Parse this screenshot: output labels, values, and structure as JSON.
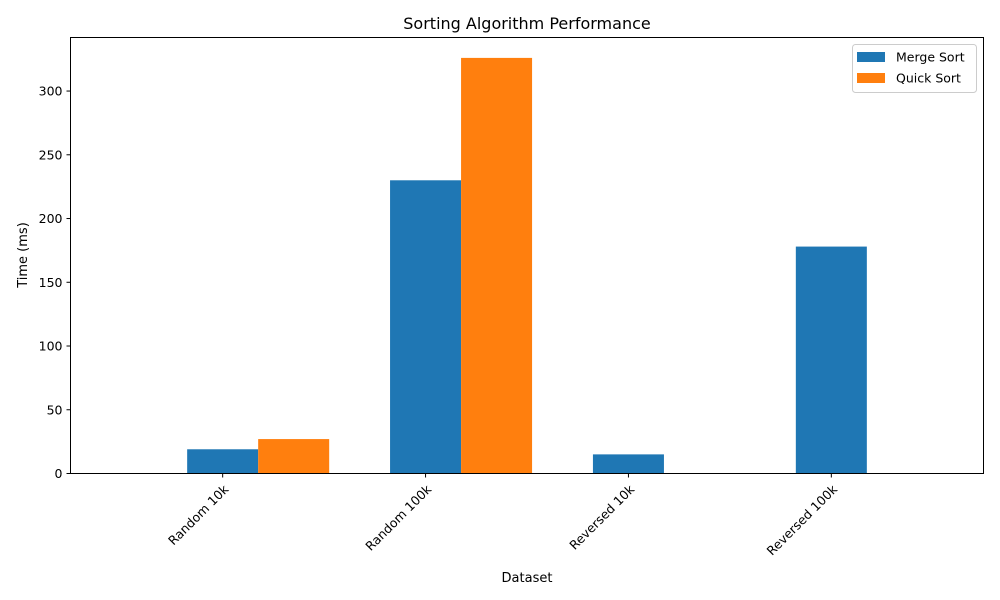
{
  "chart_data": {
    "type": "bar",
    "title": "Sorting Algorithm Performance",
    "xlabel": "Dataset",
    "ylabel": "Time (ms)",
    "categories": [
      "Random 10k",
      "Random 100k",
      "Reversed 10k",
      "Reversed 100k"
    ],
    "series": [
      {
        "name": "Merge Sort",
        "color": "#1f77b4",
        "values": [
          19,
          230,
          15,
          178
        ]
      },
      {
        "name": "Quick Sort",
        "color": "#ff7f0e",
        "values": [
          27,
          326,
          null,
          null
        ]
      }
    ],
    "yticks": [
      0,
      50,
      100,
      150,
      200,
      250,
      300
    ],
    "ylim": [
      0,
      342
    ],
    "grid": false,
    "legend": "top-right"
  }
}
